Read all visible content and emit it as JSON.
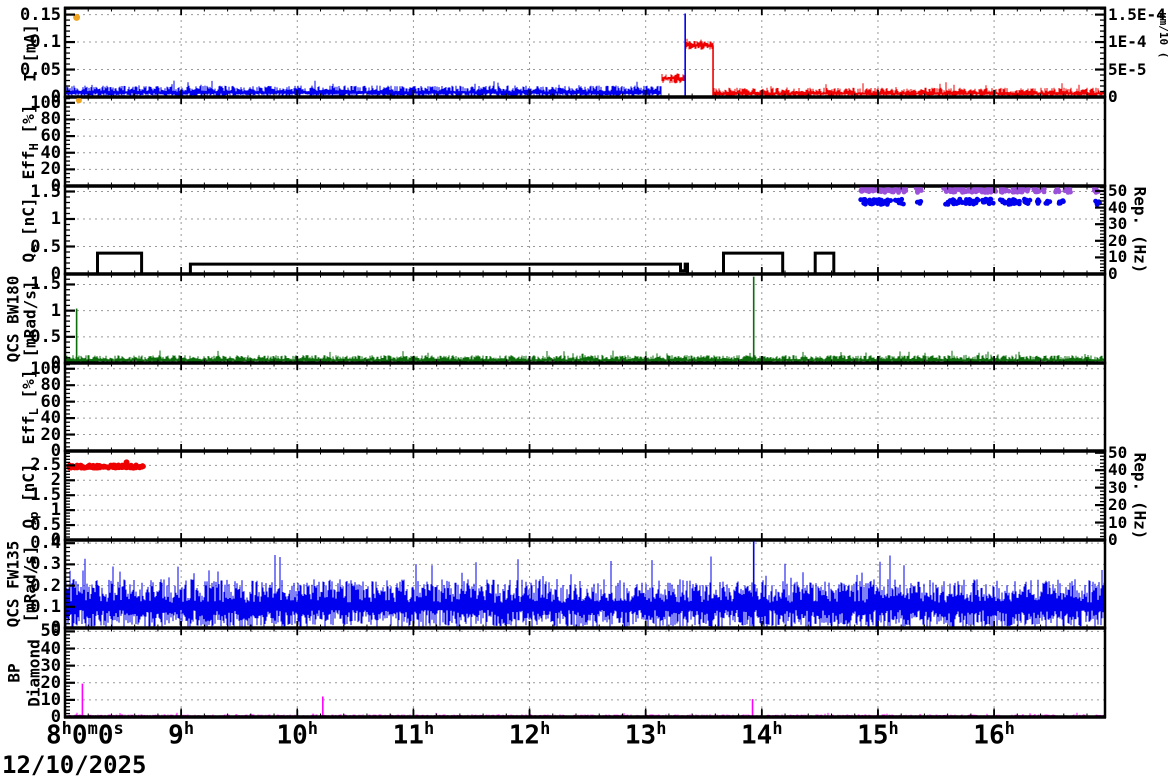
{
  "colors": {
    "blue": "#0000ee",
    "red": "#ee0000",
    "green": "#0b6e0b",
    "magenta": "#ff00ff",
    "purple": "#9a50d8",
    "orange": "#eea420",
    "black": "#000000",
    "grid": "#999999"
  },
  "x_axis": {
    "date": "12/10/2025",
    "t_start": 8,
    "t_end": 16.955,
    "start_parts": [
      {
        "t": "8",
        "sup": "h"
      },
      {
        "t": "0",
        "sup": "m"
      },
      {
        "t": "0",
        "sup": "s"
      }
    ],
    "hours": [
      {
        "v": 9,
        "t": "9",
        "sup": "h"
      },
      {
        "v": 10,
        "t": "10",
        "sup": "h"
      },
      {
        "v": 11,
        "t": "11",
        "sup": "h"
      },
      {
        "v": 12,
        "t": "12",
        "sup": "h"
      },
      {
        "v": 13,
        "t": "13",
        "sup": "h"
      },
      {
        "v": 14,
        "t": "14",
        "sup": "h"
      },
      {
        "v": 15,
        "t": "15",
        "sup": "h"
      },
      {
        "v": 16,
        "t": "16",
        "sup": "h"
      }
    ],
    "minor_step": 0.2
  },
  "chart_data": [
    {
      "type": "line",
      "name": "beam-current",
      "left_label": {
        "cxs": [
          30
        ],
        "lines": [
          [
            {
              "t": "I [mA]"
            }
          ]
        ]
      },
      "ylim": 0.162,
      "minor": 0.01,
      "ticks": [
        {
          "v": 0.15,
          "l": "0.15"
        },
        {
          "v": 0.1,
          "l": "0.1"
        },
        {
          "v": 0.05,
          "l": "0.05"
        },
        {
          "v": 0,
          "l": "0"
        }
      ],
      "right": {
        "ylim": 0.000162,
        "minor": 1e-05,
        "ticks": [
          {
            "v": 0.00015,
            "l": "1.5E-4"
          },
          {
            "v": 0.0001,
            "l": "1E-4"
          },
          {
            "v": 5e-05,
            "l": "5E-5"
          },
          {
            "v": 0,
            "l": "0"
          }
        ],
        "rot_label": null,
        "clip_label": "µm/10 ("
      },
      "series": [
        {
          "type": "noise",
          "color": "blue",
          "t0": 8.0,
          "t1": 13.13,
          "base": 0.008,
          "up": 0.013,
          "dn": 0.008,
          "seed": 11
        },
        {
          "type": "noise",
          "color": "red",
          "t0": 13.14,
          "t1": 13.34,
          "base": 0.034,
          "up": 0.009,
          "dn": 0.009,
          "seed": 12
        },
        {
          "type": "noise",
          "color": "red",
          "t0": 13.34,
          "t1": 13.58,
          "base": 0.094,
          "up": 0.008,
          "dn": 0.008,
          "seed": 13
        },
        {
          "type": "vline",
          "color": "red",
          "t": 13.58,
          "v0": 0,
          "v1": 0.094
        },
        {
          "type": "noise",
          "color": "red",
          "t0": 13.58,
          "t1": 16.955,
          "base": 0.006,
          "up": 0.011,
          "dn": 0.006,
          "seed": 14
        },
        {
          "type": "vline",
          "color": "blue",
          "t": 13.34,
          "v0": 0,
          "v1": 0.152
        },
        {
          "type": "dot",
          "color": "orange",
          "t": 8.1,
          "v": 0.145,
          "r": 3.5
        }
      ]
    },
    {
      "type": "line",
      "name": "eff-h",
      "left_label": {
        "cxs": [
          30
        ],
        "lines": [
          [
            {
              "t": "Eff"
            },
            {
              "s": "H"
            },
            {
              "t": " [%]"
            }
          ]
        ]
      },
      "ylim": 107,
      "minor": 5,
      "ticks": [
        {
          "v": 100,
          "l": "100"
        },
        {
          "v": 80,
          "l": "80"
        },
        {
          "v": 60,
          "l": "60"
        },
        {
          "v": 40,
          "l": "40"
        },
        {
          "v": 20,
          "l": "20"
        },
        {
          "v": 0,
          "l": "0"
        }
      ],
      "series": [
        {
          "type": "dot",
          "color": "orange",
          "t": 8.12,
          "v": 103,
          "r": 3
        }
      ]
    },
    {
      "type": "line",
      "name": "charge-e",
      "left_label": {
        "cxs": [
          30
        ],
        "lines": [
          [
            {
              "t": "Q"
            },
            {
              "s": "e"
            },
            {
              "t": " [nC]"
            }
          ]
        ]
      },
      "ylim": 1.6,
      "minor": 0.1,
      "ticks": [
        {
          "v": 1.5,
          "l": "1.5"
        },
        {
          "v": 1,
          "l": "1"
        },
        {
          "v": 0.5,
          "l": "0.5"
        },
        {
          "v": 0,
          "l": "0"
        }
      ],
      "right": {
        "ylim": 53,
        "minor": 2,
        "ticks": [
          {
            "v": 50,
            "l": "50"
          },
          {
            "v": 40,
            "l": "40"
          },
          {
            "v": 30,
            "l": "30"
          },
          {
            "v": 20,
            "l": "20"
          },
          {
            "v": 10,
            "l": "10"
          },
          {
            "v": 0,
            "l": "0"
          }
        ],
        "rot_label": "Rep. (Hz)"
      },
      "series": [
        {
          "type": "steps",
          "color": "black",
          "w": 3,
          "points": [
            [
              8.0,
              0
            ],
            [
              8.28,
              0.38
            ],
            [
              8.66,
              0
            ],
            [
              9.08,
              0.18
            ],
            [
              13.3,
              0.06
            ],
            [
              13.34,
              0.18
            ],
            [
              13.36,
              0
            ],
            [
              13.67,
              0.38
            ],
            [
              14.18,
              0
            ],
            [
              14.46,
              0.38
            ],
            [
              14.62,
              0
            ],
            [
              16.955,
              0
            ]
          ]
        },
        {
          "type": "cluster",
          "color": "purple",
          "axis": "right",
          "v": 50.5,
          "jit": 1.4,
          "r": 2.4,
          "dens": 1.3,
          "seed": 31,
          "ranges": [
            [
              14.85,
              15.24
            ],
            [
              15.32,
              15.38
            ],
            [
              15.56,
              16.04
            ],
            [
              16.06,
              16.3
            ],
            [
              16.34,
              16.44
            ],
            [
              16.5,
              16.56
            ],
            [
              16.6,
              16.66
            ],
            [
              16.86,
              16.9
            ]
          ]
        },
        {
          "type": "cluster",
          "color": "blue",
          "axis": "right",
          "v": 43.5,
          "jit": 1.6,
          "r": 2.4,
          "dens": 1.1,
          "seed": 32,
          "ranges": [
            [
              14.85,
              15.22
            ],
            [
              15.33,
              15.37
            ],
            [
              15.58,
              16.02
            ],
            [
              16.05,
              16.22
            ],
            [
              16.26,
              16.32
            ],
            [
              16.36,
              16.4
            ],
            [
              16.44,
              16.48
            ],
            [
              16.55,
              16.6
            ],
            [
              16.87,
              16.91
            ]
          ]
        }
      ]
    },
    {
      "type": "line",
      "name": "qcs-bw180",
      "left_label": {
        "cxs": [
          13,
          30
        ],
        "lines": [
          [
            {
              "t": "QCS BW180"
            }
          ],
          [
            {
              "t": "[mRad/s]"
            }
          ]
        ]
      },
      "ylim": 1.7,
      "minor": 0.1,
      "ticks": [
        {
          "v": 1.5,
          "l": "1.5"
        },
        {
          "v": 1,
          "l": "1"
        },
        {
          "v": 0.5,
          "l": "0.5"
        },
        {
          "v": 0,
          "l": "0"
        }
      ],
      "series": [
        {
          "type": "noise",
          "color": "green",
          "t0": 8.0,
          "t1": 16.955,
          "base": 0.05,
          "up": 0.1,
          "dn": 0.05,
          "seed": 41
        },
        {
          "type": "vline",
          "color": "green",
          "t": 8.1,
          "v0": 0,
          "v1": 1.04
        },
        {
          "type": "vline",
          "color": "green",
          "t": 13.93,
          "v0": 0,
          "v1": 1.65
        }
      ]
    },
    {
      "type": "line",
      "name": "eff-l",
      "left_label": {
        "cxs": [
          30
        ],
        "lines": [
          [
            {
              "t": "Eff"
            },
            {
              "s": "L"
            },
            {
              "t": " [%]"
            }
          ]
        ]
      },
      "ylim": 107,
      "minor": 5,
      "ticks": [
        {
          "v": 100,
          "l": "100"
        },
        {
          "v": 80,
          "l": "80"
        },
        {
          "v": 60,
          "l": "60"
        },
        {
          "v": 40,
          "l": "40"
        },
        {
          "v": 20,
          "l": "20"
        },
        {
          "v": 0,
          "l": "0"
        }
      ],
      "series": []
    },
    {
      "type": "line",
      "name": "charge-p",
      "left_label": {
        "cxs": [
          30
        ],
        "lines": [
          [
            {
              "t": "Q"
            },
            {
              "s": "p"
            },
            {
              "t": " [nC]"
            }
          ]
        ]
      },
      "ylim": 2.98,
      "minor": 0.1,
      "ticks": [
        {
          "v": 2.5,
          "l": "2.5"
        },
        {
          "v": 2,
          "l": "2"
        },
        {
          "v": 1.5,
          "l": "1.5"
        },
        {
          "v": 1,
          "l": "1"
        },
        {
          "v": 0.5,
          "l": "0.5"
        },
        {
          "v": 0,
          "l": "0"
        }
      ],
      "right": {
        "ylim": 51,
        "minor": 2,
        "ticks": [
          {
            "v": 50,
            "l": "50"
          },
          {
            "v": 40,
            "l": "40"
          },
          {
            "v": 30,
            "l": "30"
          },
          {
            "v": 20,
            "l": "20"
          },
          {
            "v": 10,
            "l": "10"
          },
          {
            "v": 0,
            "l": "0"
          }
        ],
        "rot_label": "Rep. (Hz)"
      },
      "series": [
        {
          "type": "cluster",
          "color": "red",
          "axis": "left",
          "v": 2.46,
          "jit": 0.05,
          "r": 2.6,
          "dens": 1.6,
          "seed": 61,
          "ranges": [
            [
              8.03,
              8.68
            ]
          ]
        },
        {
          "type": "dot",
          "color": "red",
          "t": 8.53,
          "v": 2.6,
          "r": 3
        }
      ]
    },
    {
      "type": "line",
      "name": "qcs-fw135",
      "left_label": {
        "cxs": [
          13,
          30
        ],
        "lines": [
          [
            {
              "t": "QCS FW135"
            }
          ],
          [
            {
              "t": "[mRad/s]"
            }
          ]
        ]
      },
      "ylim": 0.415,
      "minor": 0.02,
      "ticks": [
        {
          "v": 0.4,
          "l": "0.4"
        },
        {
          "v": 0.3,
          "l": "0.3"
        },
        {
          "v": 0.2,
          "l": "0.2"
        },
        {
          "v": 0.1,
          "l": "0.1"
        },
        {
          "v": 0,
          "l": "0"
        }
      ],
      "series": [
        {
          "type": "noise",
          "color": "blue",
          "t0": 8.0,
          "t1": 16.955,
          "base": 0.1,
          "up": 0.13,
          "dn": 0.1,
          "seed": 71
        },
        {
          "type": "vline",
          "color": "blue",
          "t": 13.93,
          "v0": 0,
          "v1": 0.42
        }
      ]
    },
    {
      "type": "line",
      "name": "bp-diamond",
      "left_label": {
        "cxs": [
          14,
          34
        ],
        "lines": [
          [
            {
              "t": "BP"
            }
          ],
          [
            {
              "t": "Diamond"
            }
          ]
        ]
      },
      "ylim": 52,
      "minor": 2,
      "ticks": [
        {
          "v": 50,
          "l": "50"
        },
        {
          "v": 40,
          "l": "40"
        },
        {
          "v": 30,
          "l": "30"
        },
        {
          "v": 20,
          "l": "20"
        },
        {
          "v": 10,
          "l": "10"
        },
        {
          "v": 0,
          "l": "0"
        }
      ],
      "series": [
        {
          "type": "noise",
          "color": "magenta",
          "t0": 8.0,
          "t1": 16.955,
          "base": 0.4,
          "up": 1.1,
          "dn": 0.4,
          "seed": 81
        },
        {
          "type": "vline",
          "color": "magenta",
          "t": 8.15,
          "v0": 0,
          "v1": 19.5
        },
        {
          "type": "vline",
          "color": "magenta",
          "t": 10.22,
          "v0": 0,
          "v1": 12
        },
        {
          "type": "vline",
          "color": "magenta",
          "t": 13.92,
          "v0": 0,
          "v1": 10.5
        },
        {
          "type": "impulses",
          "color": "black",
          "v": 5,
          "times": [
            9,
            10,
            11,
            12,
            13,
            14,
            15,
            16
          ]
        }
      ]
    }
  ]
}
